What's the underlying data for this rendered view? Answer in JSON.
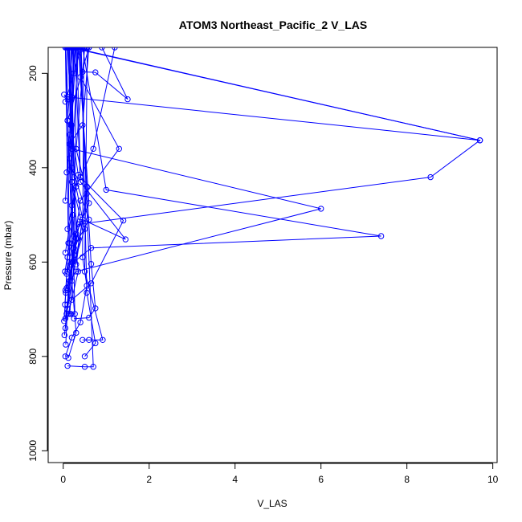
{
  "chart_data": {
    "type": "line",
    "title": "ATOM3 Northeast_Pacific_2 V_LAS",
    "xlabel": "V_LAS",
    "ylabel": "Pressure (mbar)",
    "xlim": [
      -0.35,
      10.1
    ],
    "ylim": [
      1025,
      145
    ],
    "x_ticks": [
      0,
      2,
      4,
      6,
      8,
      10
    ],
    "y_ticks": [
      200,
      400,
      600,
      800,
      1000
    ],
    "grid": false,
    "marker": "open-circle",
    "color": "#0000ff",
    "series": [
      {
        "values": [
          [
            0.05,
            260
          ],
          [
            0.25,
            200
          ],
          [
            0.4,
            150
          ],
          [
            0.3,
            145
          ]
        ]
      },
      {
        "values": [
          [
            0.1,
            300
          ],
          [
            0.45,
            197
          ],
          [
            0.75,
            198
          ],
          [
            1.5,
            255
          ],
          [
            0.9,
            145
          ]
        ]
      },
      {
        "values": [
          [
            0.15,
            350
          ],
          [
            0.45,
            310
          ],
          [
            0.6,
            145
          ]
        ]
      },
      {
        "values": [
          [
            0.08,
            410
          ],
          [
            0.2,
            310
          ],
          [
            0.1,
            145
          ]
        ]
      },
      {
        "values": [
          [
            0.05,
            470
          ],
          [
            0.15,
            330
          ],
          [
            0.2,
            145
          ]
        ]
      },
      {
        "values": [
          [
            0.1,
            530
          ],
          [
            0.35,
            415
          ],
          [
            0.18,
            310
          ],
          [
            0.25,
            145
          ]
        ]
      },
      {
        "values": [
          [
            0.05,
            580
          ],
          [
            0.3,
            440
          ],
          [
            0.7,
            360
          ],
          [
            1.2,
            145
          ]
        ]
      },
      {
        "values": [
          [
            0.1,
            620
          ],
          [
            0.35,
            550
          ],
          [
            0.15,
            380
          ],
          [
            0.3,
            145
          ]
        ]
      },
      {
        "values": [
          [
            0.05,
            660
          ],
          [
            0.5,
            530
          ],
          [
            0.25,
            420
          ],
          [
            0.15,
            145
          ]
        ]
      },
      {
        "values": [
          [
            0.1,
            700
          ],
          [
            0.55,
            455
          ],
          [
            0.3,
            360
          ],
          [
            0.5,
            145
          ]
        ]
      },
      {
        "values": [
          [
            0.05,
            720
          ],
          [
            0.25,
            570
          ],
          [
            0.6,
            510
          ],
          [
            0.2,
            400
          ],
          [
            0.35,
            145
          ]
        ]
      },
      {
        "values": [
          [
            0.1,
            660
          ],
          [
            0.4,
            470
          ],
          [
            1.3,
            360
          ],
          [
            0.4,
            208
          ],
          [
            0.6,
            145
          ]
        ]
      },
      {
        "values": [
          [
            0.15,
            710
          ],
          [
            0.3,
            550
          ],
          [
            0.18,
            145
          ]
        ]
      },
      {
        "values": [
          [
            0.08,
            710
          ],
          [
            0.25,
            585
          ],
          [
            0.4,
            505
          ],
          [
            0.2,
            430
          ],
          [
            0.12,
            145
          ]
        ]
      },
      {
        "values": [
          [
            0.12,
            710
          ],
          [
            0.35,
            620
          ],
          [
            0.2,
            480
          ],
          [
            0.1,
            300
          ],
          [
            0.22,
            145
          ]
        ]
      },
      {
        "values": [
          [
            0.05,
            740
          ],
          [
            0.15,
            640
          ],
          [
            0.3,
            540
          ],
          [
            0.6,
            475
          ],
          [
            0.35,
            145
          ]
        ]
      },
      {
        "values": [
          [
            0.02,
            245
          ],
          [
            0.12,
            255
          ],
          [
            0.2,
            250
          ],
          [
            0.28,
            145
          ]
        ]
      },
      {
        "values": [
          [
            0.1,
            250
          ],
          [
            9.7,
            342
          ],
          [
            0.15,
            145
          ]
        ]
      },
      {
        "values": [
          [
            0.15,
            640
          ],
          [
            0.3,
            620
          ],
          [
            6.0,
            487
          ],
          [
            0.2,
            360
          ],
          [
            0.25,
            145
          ]
        ]
      },
      {
        "values": [
          [
            0.18,
            605
          ],
          [
            0.65,
            570
          ],
          [
            7.4,
            545
          ],
          [
            1.0,
            447
          ],
          [
            0.45,
            145
          ]
        ]
      },
      {
        "values": [
          [
            0.2,
            680
          ],
          [
            0.65,
            645
          ],
          [
            1.4,
            512
          ],
          [
            0.4,
            420
          ],
          [
            0.32,
            145
          ]
        ]
      },
      {
        "values": [
          [
            0.1,
            590
          ],
          [
            0.35,
            520
          ],
          [
            8.55,
            420
          ],
          [
            9.7,
            342
          ],
          [
            0.2,
            145
          ]
        ]
      },
      {
        "values": [
          [
            0.3,
            605
          ],
          [
            0.45,
            510
          ],
          [
            1.45,
            552
          ],
          [
            0.4,
            430
          ],
          [
            0.27,
            145
          ]
        ]
      },
      {
        "values": [
          [
            0.25,
            720
          ],
          [
            0.6,
            718
          ],
          [
            0.75,
            698
          ],
          [
            0.65,
            604
          ],
          [
            0.55,
            440
          ],
          [
            0.38,
            145
          ]
        ]
      },
      {
        "values": [
          [
            0.05,
            800
          ],
          [
            0.2,
            760
          ],
          [
            0.4,
            728
          ],
          [
            0.55,
            650
          ],
          [
            0.45,
            590
          ],
          [
            0.48,
            145
          ]
        ]
      },
      {
        "values": [
          [
            0.1,
            820
          ],
          [
            0.5,
            822
          ],
          [
            0.7,
            822
          ],
          [
            0.4,
            145
          ]
        ]
      },
      {
        "values": [
          [
            0.45,
            765
          ],
          [
            0.6,
            765
          ],
          [
            0.92,
            765
          ],
          [
            0.5,
            620
          ],
          [
            0.56,
            145
          ]
        ]
      },
      {
        "values": [
          [
            0.5,
            800
          ],
          [
            0.75,
            772
          ],
          [
            0.55,
            665
          ],
          [
            0.42,
            145
          ]
        ]
      },
      {
        "values": [
          [
            0.12,
            803
          ],
          [
            0.3,
            750
          ],
          [
            0.2,
            640
          ],
          [
            0.23,
            145
          ]
        ]
      },
      {
        "values": [
          [
            0.03,
            755
          ],
          [
            0.08,
            710
          ],
          [
            0.18,
            710
          ],
          [
            0.27,
            710
          ],
          [
            0.14,
            145
          ]
        ]
      },
      {
        "values": [
          [
            0.06,
            775
          ],
          [
            0.1,
            690
          ],
          [
            0.15,
            600
          ],
          [
            0.08,
            145
          ]
        ]
      },
      {
        "values": [
          [
            0.02,
            725
          ],
          [
            0.06,
            665
          ],
          [
            0.12,
            560
          ],
          [
            0.05,
            145
          ]
        ]
      },
      {
        "values": [
          [
            0.04,
            690
          ],
          [
            0.08,
            625
          ],
          [
            0.25,
            545
          ],
          [
            0.32,
            145
          ]
        ]
      },
      {
        "values": [
          [
            0.08,
            655
          ],
          [
            0.22,
            600
          ],
          [
            0.05,
            145
          ]
        ]
      },
      {
        "values": [
          [
            0.04,
            620
          ],
          [
            0.15,
            560
          ],
          [
            0.22,
            500
          ],
          [
            0.12,
            145
          ]
        ]
      }
    ]
  }
}
